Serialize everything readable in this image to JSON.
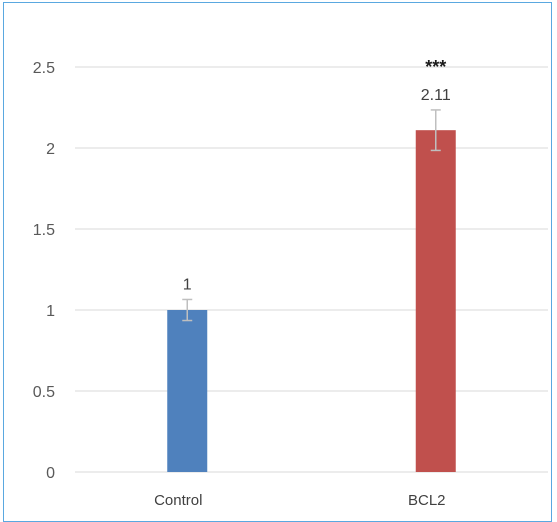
{
  "chart_data": {
    "type": "bar",
    "categories": [
      "Control",
      "BCL2"
    ],
    "values": [
      1,
      2.11
    ],
    "errors": [
      0.065,
      0.125
    ],
    "data_labels": [
      "1",
      "2.11"
    ],
    "significance": [
      "",
      "***"
    ],
    "colors": [
      "#4f81bd",
      "#c0504d"
    ],
    "title": "",
    "xlabel": "",
    "ylabel": "",
    "ylim": [
      0,
      2.5
    ],
    "yticks": [
      "0",
      "0.5",
      "1",
      "1.5",
      "2",
      "2.5"
    ],
    "grid": true,
    "legend": "none"
  }
}
